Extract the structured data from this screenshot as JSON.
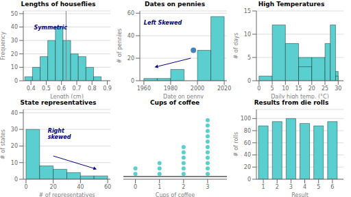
{
  "chart_data": [
    {
      "type": "histogram",
      "title": "Lengths of houseflies",
      "xlabel": "Length (cm)",
      "ylabel": "Frequency",
      "series": [
        {
          "type": "histogram",
          "bins": [
            0.36,
            0.41,
            0.46,
            0.51,
            0.56,
            0.61,
            0.66,
            0.71,
            0.76,
            0.81,
            0.86
          ],
          "values": [
            3,
            10,
            18,
            30,
            40,
            30,
            20,
            18,
            10,
            3
          ],
          "color": "#5bcfcf"
        }
      ],
      "xlim": [
        0.35,
        0.92
      ],
      "ylim": [
        0,
        52
      ],
      "xticks": [
        0.4,
        0.5,
        0.6,
        0.7,
        0.8,
        0.9
      ],
      "yticks": [
        0,
        10,
        20,
        30,
        40,
        50
      ],
      "grid": true,
      "reference_lines": [
        {
          "x": 0.63,
          "color": "gray"
        }
      ],
      "annotations": [
        {
          "text": "Symmetric",
          "x": 0.42,
          "y": 38,
          "color": "navy"
        }
      ]
    },
    {
      "type": "histogram",
      "title": "Dates on pennies",
      "xlabel": "Date on penny",
      "ylabel": "# of pennies",
      "series": [
        {
          "type": "histogram",
          "bins": [
            1960,
            1970,
            1980,
            1990,
            2000,
            2010,
            2020
          ],
          "values": [
            2,
            2,
            10,
            0,
            27,
            57
          ],
          "color": "#5bcfcf"
        },
        {
          "type": "scatter",
          "x": [
            1997
          ],
          "values": [
            27
          ],
          "color": "steelblue"
        }
      ],
      "xlim": [
        1957,
        2022
      ],
      "ylim": [
        0,
        62
      ],
      "xticks": [
        1960,
        1980,
        2000,
        2020
      ],
      "yticks": [
        0,
        20,
        40,
        60
      ],
      "grid": true,
      "annotations": [
        {
          "text": "Left Skewed",
          "x": 1960,
          "y": 50,
          "color": "navy"
        }
      ],
      "arrows": [
        {
          "from": [
            1995,
            20
          ],
          "to": [
            1968,
            12
          ],
          "color": "navy"
        }
      ]
    },
    {
      "type": "histogram",
      "title": "High Temperatures",
      "xlabel": "Daily high temp. (°C)",
      "ylabel": "# of days",
      "series": [
        {
          "type": "histogram",
          "bins": [
            0,
            5,
            10,
            15,
            20,
            25,
            30
          ],
          "values": [
            1,
            12,
            8,
            5,
            3,
            2
          ],
          "color": "#5bcfcf"
        },
        {
          "type": "histogram",
          "bins": [
            15,
            20,
            25,
            27,
            29,
            30
          ],
          "values": [
            3,
            5,
            8,
            12,
            1
          ],
          "color": "#5bcfcf"
        }
      ],
      "xlim": [
        -1,
        32
      ],
      "ylim": [
        0,
        15
      ],
      "xticks": [
        0,
        5,
        10,
        15,
        20,
        25,
        30
      ],
      "yticks": [
        0,
        5,
        10,
        15
      ],
      "grid": true
    },
    {
      "type": "histogram",
      "title": "State representatives",
      "xlabel": "# of representatives",
      "ylabel": "# of states",
      "series": [
        {
          "type": "histogram",
          "bins": [
            0,
            10,
            20,
            30,
            40,
            50,
            60
          ],
          "values": [
            30,
            8,
            6,
            4,
            2,
            2
          ],
          "color": "#5bcfcf"
        }
      ],
      "xlim": [
        -2,
        62
      ],
      "ylim": [
        0,
        42
      ],
      "xticks": [
        0,
        20,
        40,
        60
      ],
      "yticks": [
        0,
        10,
        20,
        30,
        40
      ],
      "grid": true,
      "annotations": [
        {
          "text": "Right\nskewed",
          "x": 16,
          "y": 28,
          "color": "navy"
        }
      ],
      "arrows": [
        {
          "from": [
            20,
            14
          ],
          "to": [
            52,
            6
          ],
          "color": "navy"
        }
      ]
    },
    {
      "type": "scatter",
      "title": "Cups of coffee",
      "xlabel": "Cups of coffee",
      "x": [
        0,
        0,
        1,
        1,
        1,
        2,
        2,
        2,
        2,
        2,
        2,
        3,
        3,
        3,
        3,
        3,
        3,
        3,
        3,
        3,
        3,
        3
      ],
      "values": [
        1,
        2,
        1,
        2,
        3,
        1,
        2,
        3,
        4,
        5,
        6,
        1,
        2,
        3,
        4,
        5,
        6,
        7,
        8,
        9,
        10,
        11
      ],
      "color": "#5bcfcf",
      "xlim": [
        -0.5,
        3.8
      ],
      "ylim": [
        0,
        13
      ],
      "xticks": [
        0,
        1,
        2,
        3
      ],
      "tick_labels": "x",
      "reference_lines": [
        {
          "y": 0.5,
          "color": "black"
        }
      ]
    },
    {
      "type": "bar",
      "title": "Results from die rolls",
      "xlabel": "Result",
      "ylabel": "# of rolls",
      "categories": [
        1,
        2,
        3,
        4,
        5,
        6
      ],
      "values": [
        88,
        95,
        100,
        92,
        88,
        95
      ],
      "color": "#5bcfcf",
      "xlim": [
        0.5,
        6.8
      ],
      "ylim": [
        0,
        115
      ],
      "xticks": [
        1,
        2,
        3,
        4,
        5,
        6
      ],
      "yticks": [
        0,
        20,
        40,
        60,
        80,
        100
      ],
      "grid": true
    }
  ]
}
